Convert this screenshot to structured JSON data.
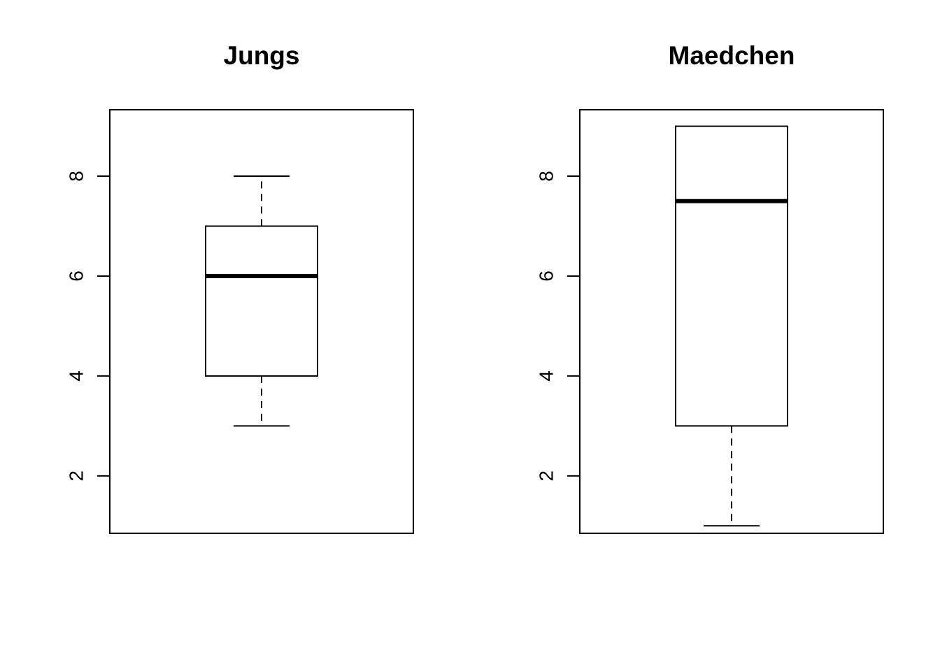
{
  "chart_data": [
    {
      "type": "boxplot",
      "title": "Jungs",
      "xlabel": "",
      "ylabel": "",
      "ylim": [
        0.85,
        9.33
      ],
      "yticks": [
        2,
        4,
        6,
        8
      ],
      "grid": false,
      "box": {
        "whisker_low": 3,
        "q1": 4,
        "median": 6,
        "q3": 7,
        "whisker_high": 8
      }
    },
    {
      "type": "boxplot",
      "title": "Maedchen",
      "xlabel": "",
      "ylabel": "",
      "ylim": [
        0.85,
        9.33
      ],
      "yticks": [
        2,
        4,
        6,
        8
      ],
      "grid": false,
      "box": {
        "whisker_low": 1,
        "q1": 3,
        "median": 7.5,
        "q3": 9,
        "whisker_high": 9
      }
    }
  ]
}
